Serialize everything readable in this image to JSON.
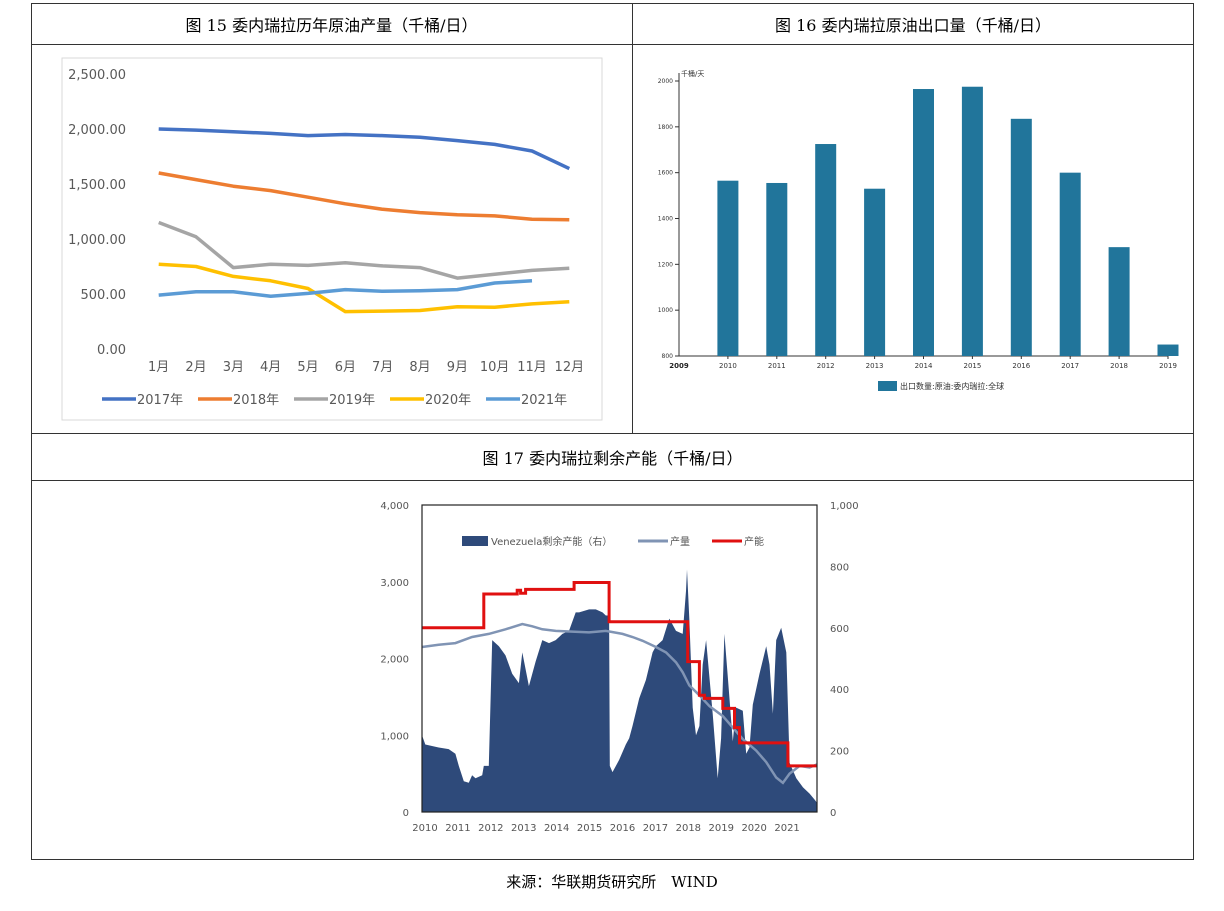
{
  "titles": {
    "fig15": "图 15 委内瑞拉历年原油产量（千桶/日）",
    "fig16": "图 16 委内瑞拉原油出口量（千桶/日）",
    "fig17": "图 17 委内瑞拉剩余产能（千桶/日）"
  },
  "source": "来源：华联期货研究所　WIND",
  "chart_data": [
    {
      "type": "line",
      "categories": [
        "1月",
        "2月",
        "3月",
        "4月",
        "5月",
        "6月",
        "7月",
        "8月",
        "9月",
        "10月",
        "11月",
        "12月"
      ],
      "ylim": [
        0,
        2500
      ],
      "yticks": [
        "0.00",
        "500.00",
        "1,000.00",
        "1,500.00",
        "2,000.00",
        "2,500.00"
      ],
      "legend_position": "bottom",
      "grid": false,
      "series": [
        {
          "name": "2017年",
          "color": "#4472C4",
          "values": [
            2000,
            1990,
            1975,
            1960,
            1940,
            1950,
            1940,
            1925,
            1895,
            1860,
            1800,
            1640
          ]
        },
        {
          "name": "2018年",
          "color": "#ED7D31",
          "values": [
            1600,
            1540,
            1480,
            1440,
            1380,
            1320,
            1270,
            1240,
            1220,
            1210,
            1180,
            1175
          ]
        },
        {
          "name": "2019年",
          "color": "#A5A5A5",
          "values": [
            1150,
            1020,
            740,
            770,
            760,
            785,
            755,
            740,
            645,
            680,
            715,
            735
          ]
        },
        {
          "name": "2020年",
          "color": "#FFC000",
          "values": [
            770,
            750,
            660,
            620,
            550,
            340,
            345,
            350,
            385,
            380,
            410,
            430
          ]
        },
        {
          "name": "2021年",
          "color": "#5B9BD5",
          "values": [
            490,
            520,
            520,
            480,
            505,
            540,
            525,
            530,
            540,
            600,
            620,
            null
          ]
        }
      ]
    },
    {
      "type": "bar",
      "unit_label": "千桶/天",
      "categories": [
        "2010",
        "2011",
        "2012",
        "2013",
        "2014",
        "2015",
        "2016",
        "2017",
        "2018",
        "2019"
      ],
      "x_start_label": "2009",
      "values": [
        1565,
        1555,
        1725,
        1530,
        1965,
        1975,
        1835,
        1600,
        1275,
        850
      ],
      "ylim": [
        800,
        2000
      ],
      "yticks": [
        "800",
        "1000",
        "1200",
        "1400",
        "1600",
        "1800",
        "2000"
      ],
      "color": "#21759B",
      "legend": "出口数量:原油:委内瑞拉:全球",
      "legend_position": "bottom"
    },
    {
      "type": "area",
      "x_labels": [
        "2010",
        "2011",
        "2012",
        "2013",
        "2014",
        "2015",
        "2016",
        "2017",
        "2018",
        "2019",
        "2020",
        "2021"
      ],
      "left_yticks": [
        "0",
        "1,000",
        "2,000",
        "3,000",
        "4,000"
      ],
      "right_yticks": [
        "0",
        "200",
        "400",
        "600",
        "800",
        "1,000"
      ],
      "legend_position": "top",
      "series": [
        {
          "name": "Venezuela剩余产能（右）",
          "color": "#2E4A7A",
          "axis": "right",
          "x": [
            2010,
            2010.1,
            2010.3,
            2010.5,
            2010.8,
            2011.0,
            2011.1,
            2011.25,
            2011.4,
            2011.5,
            2011.6,
            2011.8,
            2011.85,
            2012.0,
            2012.1,
            2012.3,
            2012.5,
            2012.7,
            2012.9,
            2013.0,
            2013.2,
            2013.4,
            2013.6,
            2013.8,
            2014.0,
            2014.2,
            2014.4,
            2014.6,
            2014.7,
            2015.0,
            2015.2,
            2015.4,
            2015.5,
            2015.6,
            2015.62,
            2015.7,
            2015.9,
            2016.1,
            2016.2,
            2016.3,
            2016.5,
            2016.7,
            2016.9,
            2017.0,
            2017.2,
            2017.4,
            2017.6,
            2017.8,
            2017.9,
            2017.93,
            2018.0,
            2018.1,
            2018.2,
            2018.3,
            2018.4,
            2018.5,
            2018.7,
            2018.85,
            2018.95,
            2019.05,
            2019.15,
            2019.3,
            2019.4,
            2019.6,
            2019.7,
            2019.8,
            2019.9,
            2020.1,
            2020.3,
            2020.4,
            2020.5,
            2020.6,
            2020.75,
            2020.9,
            2021.0,
            2021.2,
            2021.4,
            2021.6,
            2021.75,
            2021.82
          ],
          "values": [
            250,
            220,
            215,
            210,
            205,
            190,
            150,
            100,
            95,
            120,
            110,
            120,
            150,
            150,
            560,
            540,
            510,
            450,
            420,
            520,
            410,
            490,
            560,
            550,
            560,
            580,
            590,
            650,
            650,
            660,
            660,
            650,
            640,
            640,
            150,
            130,
            170,
            220,
            240,
            280,
            370,
            430,
            520,
            540,
            560,
            630,
            590,
            580,
            720,
            790,
            630,
            340,
            250,
            280,
            480,
            560,
            320,
            110,
            240,
            580,
            440,
            230,
            340,
            330,
            190,
            210,
            350,
            450,
            540,
            480,
            320,
            560,
            600,
            520,
            160,
            110,
            80,
            60,
            40,
            30
          ]
        },
        {
          "name": "产量",
          "color": "#8094B4",
          "axis": "left",
          "x": [
            2010,
            2010.5,
            2011,
            2011.5,
            2012,
            2012.5,
            2013,
            2013.3,
            2013.6,
            2014,
            2014.5,
            2015,
            2015.5,
            2016,
            2016.3,
            2016.6,
            2017,
            2017.3,
            2017.6,
            2017.8,
            2018,
            2018.3,
            2018.6,
            2019,
            2019.3,
            2019.6,
            2020,
            2020.3,
            2020.6,
            2020.8,
            2021,
            2021.3,
            2021.6,
            2021.82
          ],
          "values": [
            2150,
            2180,
            2200,
            2280,
            2320,
            2380,
            2450,
            2420,
            2380,
            2360,
            2350,
            2340,
            2360,
            2320,
            2280,
            2230,
            2150,
            2080,
            1950,
            1820,
            1650,
            1520,
            1380,
            1250,
            1100,
            950,
            800,
            650,
            450,
            380,
            500,
            600,
            580,
            620
          ]
        },
        {
          "name": "产能",
          "color": "#E01010",
          "axis": "left",
          "x": [
            2010,
            2011.85,
            2011.85,
            2012.85,
            2012.85,
            2012.95,
            2012.95,
            2013.1,
            2013.1,
            2014.55,
            2014.55,
            2015.6,
            2015.6,
            2017.95,
            2017.95,
            2018.3,
            2018.3,
            2018.45,
            2018.45,
            2019.0,
            2019.0,
            2019.35,
            2019.35,
            2019.5,
            2019.5,
            2020.95,
            2020.95,
            2021.82
          ],
          "values": [
            2400,
            2400,
            2840,
            2840,
            2890,
            2890,
            2850,
            2850,
            2900,
            2900,
            2990,
            2990,
            2480,
            2480,
            1960,
            1960,
            1520,
            1520,
            1480,
            1480,
            1350,
            1350,
            1100,
            1100,
            900,
            900,
            600,
            600
          ]
        }
      ]
    }
  ]
}
